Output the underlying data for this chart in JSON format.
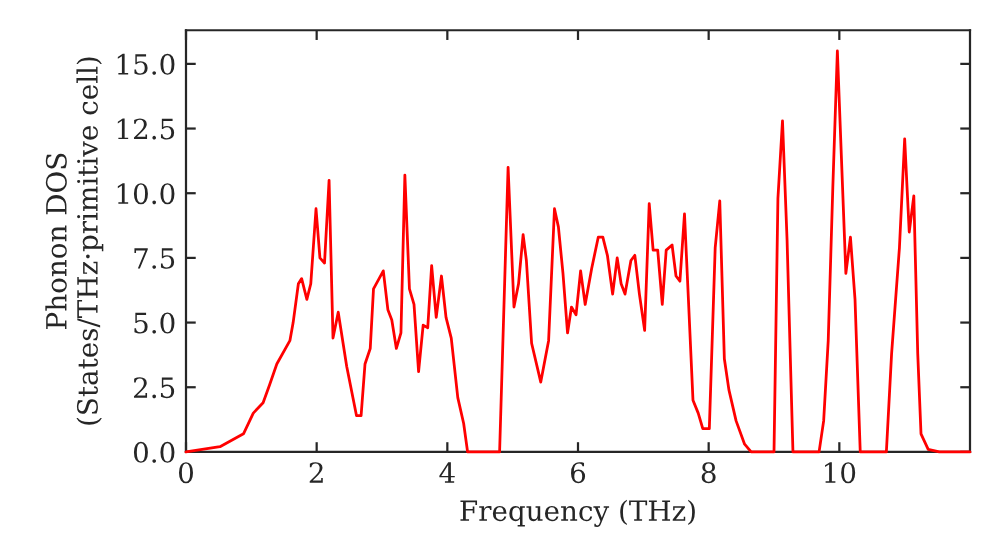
{
  "chart_data": {
    "type": "line",
    "xlabel": "Frequency (THz)",
    "ylabel": "Phonon DOS\n(States/THz·primitive cell)",
    "xlim": [
      0,
      12
    ],
    "ylim": [
      0,
      16.3
    ],
    "xticks": [
      0,
      2,
      4,
      6,
      8,
      10
    ],
    "yticks": [
      {
        "value": 0,
        "label": "0.0"
      },
      {
        "value": 2.5,
        "label": "2.5"
      },
      {
        "value": 5,
        "label": "5.0"
      },
      {
        "value": 7.5,
        "label": "7.5"
      },
      {
        "value": 10,
        "label": "10.0"
      },
      {
        "value": 12.5,
        "label": "12.5"
      },
      {
        "value": 15,
        "label": "15.0"
      }
    ],
    "grid": false,
    "marker": "none",
    "line_style": "solid",
    "series": [
      {
        "color": "#ff0000",
        "x": [
          0,
          0.52,
          0.88,
          1.03,
          1.18,
          1.28,
          1.39,
          1.59,
          1.64,
          1.72,
          1.77,
          1.85,
          1.91,
          1.99,
          2.05,
          2.12,
          2.19,
          2.25,
          2.33,
          2.46,
          2.61,
          2.68,
          2.74,
          2.82,
          2.87,
          3.02,
          3.09,
          3.15,
          3.22,
          3.29,
          3.35,
          3.42,
          3.49,
          3.56,
          3.63,
          3.7,
          3.76,
          3.83,
          3.91,
          3.98,
          4.06,
          4.16,
          4.25,
          4.31,
          4.8,
          4.93,
          5.02,
          5.09,
          5.16,
          5.21,
          5.29,
          5.43,
          5.55,
          5.64,
          5.7,
          5.77,
          5.84,
          5.9,
          5.97,
          6.04,
          6.11,
          6.21,
          6.31,
          6.38,
          6.45,
          6.53,
          6.6,
          6.66,
          6.72,
          6.81,
          6.87,
          6.94,
          7.02,
          7.09,
          7.15,
          7.22,
          7.29,
          7.35,
          7.44,
          7.5,
          7.56,
          7.63,
          7.69,
          7.76,
          7.84,
          7.91,
          8.01,
          8.1,
          8.17,
          8.24,
          8.31,
          8.42,
          8.55,
          8.65,
          9.0,
          9.06,
          9.13,
          9.2,
          9.29,
          9.69,
          9.76,
          9.83,
          9.9,
          9.97,
          10.03,
          10.1,
          10.17,
          10.24,
          10.32,
          10.72,
          10.8,
          10.92,
          11.0,
          11.07,
          11.14,
          11.2,
          11.25,
          11.36,
          11.53,
          12.0
        ],
        "values": [
          0,
          0.2,
          0.7,
          1.5,
          1.9,
          2.6,
          3.4,
          4.3,
          5.0,
          6.5,
          6.7,
          5.9,
          6.5,
          9.4,
          7.5,
          7.3,
          10.5,
          4.4,
          5.4,
          3.3,
          1.4,
          1.4,
          3.4,
          4.0,
          6.3,
          7.0,
          5.5,
          5.1,
          4.0,
          4.6,
          10.7,
          6.3,
          5.7,
          3.1,
          4.9,
          4.8,
          7.2,
          5.2,
          6.8,
          5.2,
          4.4,
          2.1,
          1.1,
          0,
          0,
          11.0,
          5.6,
          6.5,
          8.4,
          7.4,
          4.2,
          2.7,
          4.3,
          9.4,
          8.7,
          6.9,
          4.6,
          5.6,
          5.3,
          7.0,
          5.7,
          7.1,
          8.3,
          8.3,
          7.6,
          6.1,
          7.5,
          6.5,
          6.1,
          7.4,
          7.6,
          6.1,
          4.7,
          9.6,
          7.8,
          7.8,
          5.7,
          7.8,
          8.0,
          6.8,
          6.6,
          9.2,
          5.9,
          2.0,
          1.5,
          0.9,
          0.9,
          7.9,
          9.7,
          3.6,
          2.4,
          1.2,
          0.3,
          0,
          0,
          9.8,
          12.8,
          8.2,
          0,
          0,
          1.2,
          4.3,
          10.2,
          15.5,
          11.5,
          6.9,
          8.3,
          5.9,
          0,
          0,
          3.8,
          7.9,
          12.1,
          8.5,
          9.9,
          3.8,
          0.7,
          0.1,
          0,
          0
        ]
      }
    ]
  }
}
